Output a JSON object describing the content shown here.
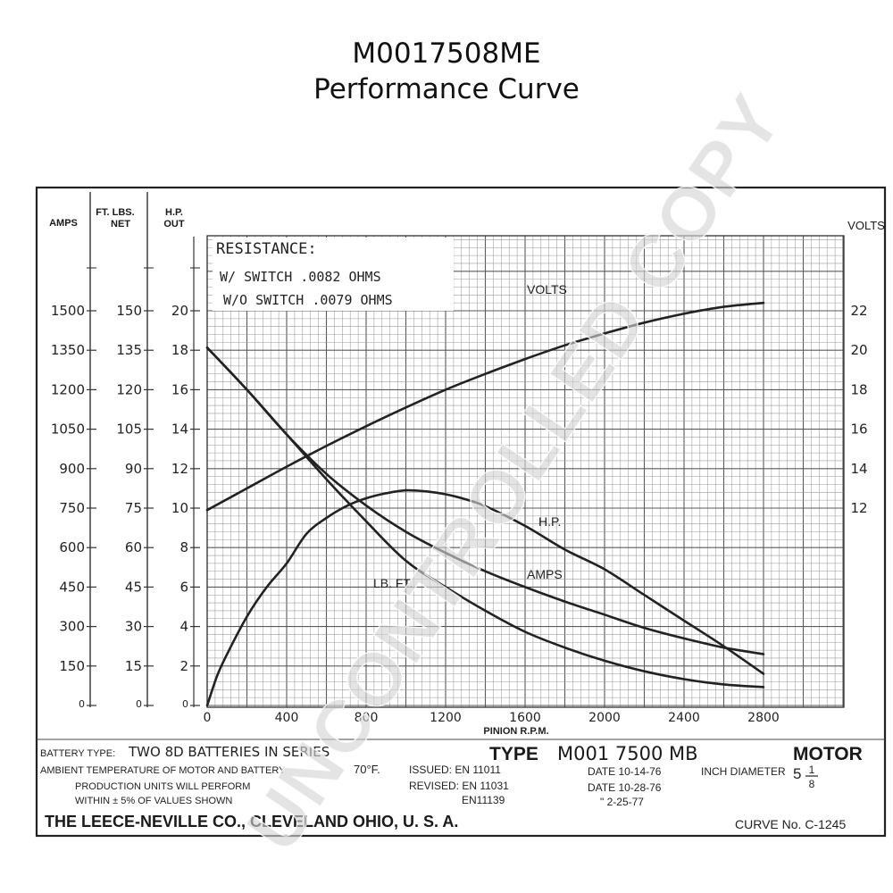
{
  "page": {
    "title": "M0017508ME",
    "subtitle": "Performance Curve"
  },
  "chart_data": {
    "type": "line",
    "xlabel": "PINION R.P.M.",
    "x_ticks": [
      "0",
      "400",
      "800",
      "1200",
      "1600",
      "2000",
      "2400",
      "2800"
    ],
    "xlim": [
      0,
      3200
    ],
    "grid": true,
    "left_axes": [
      {
        "header": [
          "AMPS"
        ],
        "unit": "amps",
        "ylim": [
          0,
          1500
        ],
        "ticks": [
          {
            "value": 0,
            "label": "0"
          },
          {
            "value": 150,
            "label": "150"
          },
          {
            "value": 300,
            "label": "300"
          },
          {
            "value": 450,
            "label": "450"
          },
          {
            "value": 600,
            "label": "600"
          },
          {
            "value": 750,
            "label": "750"
          },
          {
            "value": 900,
            "label": "900"
          },
          {
            "value": 1050,
            "label": "1050"
          },
          {
            "value": 1200,
            "label": "1200"
          },
          {
            "value": 1350,
            "label": "1350"
          },
          {
            "value": 1500,
            "label": "1500"
          }
        ]
      },
      {
        "header": [
          "FT. LBS.",
          "NET"
        ],
        "unit": "ft lbs",
        "ylim": [
          0,
          150
        ],
        "ticks": [
          {
            "value": 0,
            "label": "0"
          },
          {
            "value": 15,
            "label": "15"
          },
          {
            "value": 30,
            "label": "30"
          },
          {
            "value": 45,
            "label": "45"
          },
          {
            "value": 60,
            "label": "60"
          },
          {
            "value": 75,
            "label": "75"
          },
          {
            "value": 90,
            "label": "90"
          },
          {
            "value": 105,
            "label": "105"
          },
          {
            "value": 120,
            "label": "120"
          },
          {
            "value": 135,
            "label": "135"
          },
          {
            "value": 150,
            "label": "150"
          }
        ]
      },
      {
        "header": [
          "H.P.",
          "OUT"
        ],
        "unit": "hp",
        "ylim": [
          0,
          20
        ],
        "ticks": [
          {
            "value": 0,
            "label": "0"
          },
          {
            "value": 2,
            "label": "2"
          },
          {
            "value": 4,
            "label": "4"
          },
          {
            "value": 6,
            "label": "6"
          },
          {
            "value": 8,
            "label": "8"
          },
          {
            "value": 10,
            "label": "10"
          },
          {
            "value": 12,
            "label": "12"
          },
          {
            "value": 14,
            "label": "14"
          },
          {
            "value": 16,
            "label": "16"
          },
          {
            "value": 18,
            "label": "18"
          },
          {
            "value": 20,
            "label": "20"
          }
        ]
      }
    ],
    "right_axis": {
      "header": "VOLTS",
      "unit": "volts",
      "ylim": [
        0,
        20
      ],
      "ticks": [
        {
          "value": 12,
          "label": "12"
        },
        {
          "value": 14,
          "label": "14"
        },
        {
          "value": 16,
          "label": "16"
        },
        {
          "value": 18,
          "label": "18"
        },
        {
          "value": 20,
          "label": "20"
        },
        {
          "value": 22,
          "label": "22"
        }
      ]
    },
    "series": [
      {
        "name": "VOLTS",
        "axis": "volts",
        "x": [
          0,
          200,
          400,
          600,
          800,
          1000,
          1200,
          1400,
          1600,
          1800,
          2000,
          2200,
          2400,
          2600,
          2800
        ],
        "y": [
          11.9,
          13.0,
          14.1,
          15.15,
          16.15,
          17.1,
          18.0,
          18.8,
          19.55,
          20.25,
          20.85,
          21.4,
          21.85,
          22.2,
          22.4
        ]
      },
      {
        "name": "H.P.",
        "axis": "hp",
        "x": [
          0,
          50,
          100,
          200,
          300,
          400,
          500,
          600,
          700,
          800,
          900,
          1000,
          1100,
          1200,
          1300,
          1400,
          1600,
          1800,
          2000,
          2200,
          2400,
          2600,
          2800
        ],
        "y": [
          0,
          1.5,
          2.6,
          4.5,
          6.0,
          7.2,
          8.7,
          9.5,
          10.1,
          10.5,
          10.75,
          10.9,
          10.85,
          10.7,
          10.45,
          10.1,
          9.1,
          7.9,
          6.9,
          5.6,
          4.3,
          3.0,
          1.6
        ]
      },
      {
        "name": "AMPS",
        "axis": "amps",
        "x": [
          0,
          200,
          400,
          600,
          800,
          1000,
          1200,
          1400,
          1600,
          1800,
          2000,
          2200,
          2400,
          2600,
          2800
        ],
        "y": [
          1360,
          1200,
          1030,
          880,
          760,
          660,
          580,
          510,
          450,
          395,
          345,
          295,
          255,
          220,
          195
        ]
      },
      {
        "name": "LB. FT.",
        "axis": "ft lbs",
        "x": [
          0,
          200,
          400,
          600,
          800,
          1000,
          1200,
          1400,
          1600,
          1800,
          2000,
          2200,
          2400,
          2600,
          2800
        ],
        "y": [
          136,
          120,
          103,
          86,
          70,
          55,
          45,
          36,
          28,
          22,
          17,
          13,
          10,
          8,
          7
        ]
      }
    ],
    "annotations": [
      "RESISTANCE:",
      "W/ SWITCH .0082 OHMS",
      "W/O SWITCH .0079 OHMS"
    ]
  },
  "footer": {
    "battery_label": "BATTERY TYPE:",
    "battery_value": "TWO 8D BATTERIES IN SERIES",
    "ambient_label": "AMBIENT TEMPERATURE OF MOTOR AND BATTERY",
    "ambient_value": "70°F.",
    "note_line1": "PRODUCTION UNITS WILL PERFORM",
    "note_line2": "WITHIN ± 5% OF VALUES SHOWN",
    "issued": "ISSUED: EN 11011",
    "revised": "REVISED: EN 11031",
    "revised_2": "EN11139",
    "type_label": "TYPE",
    "type_value": "M001 7500 MB",
    "motor_label": "MOTOR",
    "date_issued": "DATE 10-14-76",
    "date_revised": "DATE 10-28-76",
    "date_revised_2": "\"   2-25-77",
    "inch_diameter_label": "INCH DIAMETER",
    "inch_diameter_whole": "5",
    "inch_diameter_num": "1",
    "inch_diameter_den": "8",
    "company": "THE LEECE-NEVILLE CO., CLEVELAND OHIO, U. S. A.",
    "curve_no": "CURVE No. C-1245"
  },
  "watermark": {
    "text": "UNCONTROLLED COPY"
  }
}
